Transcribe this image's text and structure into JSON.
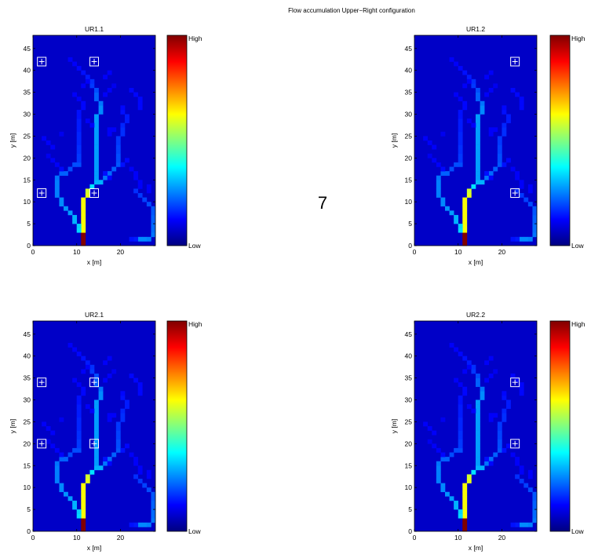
{
  "figure": {
    "title": "Flow accumulation Upper−Right configuration",
    "center_label": "7"
  },
  "chart_data": [
    {
      "type": "heatmap",
      "title": "UR1.1",
      "xlabel": "x [m]",
      "ylabel": "y [m]",
      "xlim": [
        0,
        28
      ],
      "ylim": [
        0,
        48
      ],
      "xticks": [
        0,
        10,
        20
      ],
      "yticks": [
        0,
        5,
        10,
        15,
        20,
        25,
        30,
        35,
        40,
        45
      ],
      "colorbar": {
        "high_label": "High",
        "low_label": "Low"
      },
      "markers": [
        {
          "x": 2,
          "y": 42
        },
        {
          "x": 14,
          "y": 42
        },
        {
          "x": 2,
          "y": 12
        },
        {
          "x": 14,
          "y": 12
        }
      ]
    },
    {
      "type": "heatmap",
      "title": "UR1.2",
      "xlabel": "x [m]",
      "ylabel": "y [m]",
      "xlim": [
        0,
        28
      ],
      "ylim": [
        0,
        48
      ],
      "xticks": [
        0,
        10,
        20
      ],
      "yticks": [
        0,
        5,
        10,
        15,
        20,
        25,
        30,
        35,
        40,
        45
      ],
      "colorbar": {
        "high_label": "High",
        "low_label": "Low"
      },
      "markers": [
        {
          "x": 23,
          "y": 42
        },
        {
          "x": 23,
          "y": 12
        }
      ]
    },
    {
      "type": "heatmap",
      "title": "UR2.1",
      "xlabel": "x [m]",
      "ylabel": "y [m]",
      "xlim": [
        0,
        28
      ],
      "ylim": [
        0,
        48
      ],
      "xticks": [
        0,
        10,
        20
      ],
      "yticks": [
        0,
        5,
        10,
        15,
        20,
        25,
        30,
        35,
        40,
        45
      ],
      "colorbar": {
        "high_label": "High",
        "low_label": "Low"
      },
      "markers": [
        {
          "x": 2,
          "y": 34
        },
        {
          "x": 14,
          "y": 34
        },
        {
          "x": 2,
          "y": 20
        },
        {
          "x": 14,
          "y": 20
        }
      ]
    },
    {
      "type": "heatmap",
      "title": "UR2.2",
      "xlabel": "x [m]",
      "ylabel": "y [m]",
      "xlim": [
        0,
        28
      ],
      "ylim": [
        0,
        48
      ],
      "xticks": [
        0,
        10,
        20
      ],
      "yticks": [
        0,
        5,
        10,
        15,
        20,
        25,
        30,
        35,
        40,
        45
      ],
      "colorbar": {
        "high_label": "High",
        "low_label": "Low"
      },
      "markers": [
        {
          "x": 23,
          "y": 34
        },
        {
          "x": 23,
          "y": 20
        }
      ]
    }
  ],
  "flow_network": {
    "background_value": 0.07,
    "cells": [
      {
        "x": 11,
        "y": 0,
        "v": 1.0
      },
      {
        "x": 11,
        "y": 1,
        "v": 1.0
      },
      {
        "x": 11,
        "y": 2,
        "v": 1.0
      },
      {
        "x": 11,
        "y": 3,
        "v": 0.62
      },
      {
        "x": 11,
        "y": 4,
        "v": 0.62
      },
      {
        "x": 11,
        "y": 5,
        "v": 0.62
      },
      {
        "x": 11,
        "y": 6,
        "v": 0.62
      },
      {
        "x": 11,
        "y": 7,
        "v": 0.62
      },
      {
        "x": 11,
        "y": 8,
        "v": 0.62
      },
      {
        "x": 11,
        "y": 9,
        "v": 0.62
      },
      {
        "x": 11,
        "y": 10,
        "v": 0.62
      },
      {
        "x": 12,
        "y": 11,
        "v": 0.6
      },
      {
        "x": 12,
        "y": 12,
        "v": 0.58
      },
      {
        "x": 13,
        "y": 13,
        "v": 0.35
      },
      {
        "x": 14,
        "y": 14,
        "v": 0.3
      },
      {
        "x": 15,
        "y": 14,
        "v": 0.3
      },
      {
        "x": 14,
        "y": 15,
        "v": 0.28
      },
      {
        "x": 14,
        "y": 16,
        "v": 0.28
      },
      {
        "x": 14,
        "y": 17,
        "v": 0.28
      },
      {
        "x": 14,
        "y": 18,
        "v": 0.28
      },
      {
        "x": 14,
        "y": 19,
        "v": 0.28
      },
      {
        "x": 14,
        "y": 20,
        "v": 0.28
      },
      {
        "x": 14,
        "y": 21,
        "v": 0.28
      },
      {
        "x": 14,
        "y": 22,
        "v": 0.28
      },
      {
        "x": 14,
        "y": 23,
        "v": 0.28
      },
      {
        "x": 14,
        "y": 24,
        "v": 0.28
      },
      {
        "x": 14,
        "y": 25,
        "v": 0.28
      },
      {
        "x": 14,
        "y": 26,
        "v": 0.28
      },
      {
        "x": 14,
        "y": 27,
        "v": 0.28
      },
      {
        "x": 14,
        "y": 28,
        "v": 0.28
      },
      {
        "x": 14,
        "y": 29,
        "v": 0.28
      },
      {
        "x": 15,
        "y": 30,
        "v": 0.26
      },
      {
        "x": 15,
        "y": 31,
        "v": 0.26
      },
      {
        "x": 15,
        "y": 32,
        "v": 0.24
      },
      {
        "x": 14,
        "y": 33,
        "v": 0.22
      },
      {
        "x": 14,
        "y": 34,
        "v": 0.22
      },
      {
        "x": 14,
        "y": 35,
        "v": 0.2
      },
      {
        "x": 13,
        "y": 36,
        "v": 0.18
      },
      {
        "x": 13,
        "y": 37,
        "v": 0.17
      },
      {
        "x": 12,
        "y": 38,
        "v": 0.15
      },
      {
        "x": 11,
        "y": 39,
        "v": 0.14
      },
      {
        "x": 10,
        "y": 40,
        "v": 0.13
      },
      {
        "x": 9,
        "y": 41,
        "v": 0.12
      },
      {
        "x": 8,
        "y": 42,
        "v": 0.12
      },
      {
        "x": 10,
        "y": 3,
        "v": 0.34
      },
      {
        "x": 10,
        "y": 4,
        "v": 0.33
      },
      {
        "x": 9,
        "y": 5,
        "v": 0.3
      },
      {
        "x": 9,
        "y": 6,
        "v": 0.3
      },
      {
        "x": 8,
        "y": 7,
        "v": 0.28
      },
      {
        "x": 7,
        "y": 8,
        "v": 0.27
      },
      {
        "x": 6,
        "y": 9,
        "v": 0.26
      },
      {
        "x": 6,
        "y": 10,
        "v": 0.26
      },
      {
        "x": 5,
        "y": 11,
        "v": 0.25
      },
      {
        "x": 5,
        "y": 12,
        "v": 0.25
      },
      {
        "x": 5,
        "y": 13,
        "v": 0.25
      },
      {
        "x": 5,
        "y": 14,
        "v": 0.25
      },
      {
        "x": 5,
        "y": 15,
        "v": 0.24
      },
      {
        "x": 6,
        "y": 16,
        "v": 0.22
      },
      {
        "x": 7,
        "y": 16,
        "v": 0.22
      },
      {
        "x": 8,
        "y": 17,
        "v": 0.2
      },
      {
        "x": 9,
        "y": 18,
        "v": 0.2
      },
      {
        "x": 10,
        "y": 18,
        "v": 0.2
      },
      {
        "x": 10,
        "y": 19,
        "v": 0.18
      },
      {
        "x": 10,
        "y": 20,
        "v": 0.18
      },
      {
        "x": 10,
        "y": 21,
        "v": 0.17
      },
      {
        "x": 10,
        "y": 22,
        "v": 0.17
      },
      {
        "x": 10,
        "y": 23,
        "v": 0.16
      },
      {
        "x": 10,
        "y": 24,
        "v": 0.16
      },
      {
        "x": 10,
        "y": 25,
        "v": 0.16
      },
      {
        "x": 10,
        "y": 26,
        "v": 0.15
      },
      {
        "x": 10,
        "y": 27,
        "v": 0.15
      },
      {
        "x": 10,
        "y": 28,
        "v": 0.15
      },
      {
        "x": 10,
        "y": 29,
        "v": 0.14
      },
      {
        "x": 10,
        "y": 30,
        "v": 0.14
      },
      {
        "x": 11,
        "y": 31,
        "v": 0.13
      },
      {
        "x": 11,
        "y": 32,
        "v": 0.13
      },
      {
        "x": 6,
        "y": 17,
        "v": 0.13
      },
      {
        "x": 5,
        "y": 18,
        "v": 0.12
      },
      {
        "x": 4,
        "y": 19,
        "v": 0.12
      },
      {
        "x": 3,
        "y": 20,
        "v": 0.11
      },
      {
        "x": 16,
        "y": 15,
        "v": 0.24
      },
      {
        "x": 17,
        "y": 16,
        "v": 0.23
      },
      {
        "x": 18,
        "y": 17,
        "v": 0.22
      },
      {
        "x": 19,
        "y": 18,
        "v": 0.21
      },
      {
        "x": 19,
        "y": 19,
        "v": 0.2
      },
      {
        "x": 19,
        "y": 20,
        "v": 0.2
      },
      {
        "x": 19,
        "y": 21,
        "v": 0.19
      },
      {
        "x": 19,
        "y": 22,
        "v": 0.19
      },
      {
        "x": 19,
        "y": 23,
        "v": 0.18
      },
      {
        "x": 19,
        "y": 24,
        "v": 0.18
      },
      {
        "x": 20,
        "y": 25,
        "v": 0.17
      },
      {
        "x": 20,
        "y": 26,
        "v": 0.17
      },
      {
        "x": 20,
        "y": 27,
        "v": 0.16
      },
      {
        "x": 21,
        "y": 28,
        "v": 0.15
      },
      {
        "x": 21,
        "y": 29,
        "v": 0.15
      },
      {
        "x": 20,
        "y": 30,
        "v": 0.14
      },
      {
        "x": 20,
        "y": 31,
        "v": 0.13
      },
      {
        "x": 20,
        "y": 18,
        "v": 0.14
      },
      {
        "x": 21,
        "y": 19,
        "v": 0.13
      },
      {
        "x": 22,
        "y": 17,
        "v": 0.12
      },
      {
        "x": 23,
        "y": 16,
        "v": 0.12
      },
      {
        "x": 23,
        "y": 15,
        "v": 0.12
      },
      {
        "x": 24,
        "y": 14,
        "v": 0.12
      },
      {
        "x": 24,
        "y": 13,
        "v": 0.12
      },
      {
        "x": 16,
        "y": 16,
        "v": 0.14
      },
      {
        "x": 17,
        "y": 15,
        "v": 0.13
      },
      {
        "x": 17,
        "y": 25,
        "v": 0.12
      },
      {
        "x": 17,
        "y": 26,
        "v": 0.12
      },
      {
        "x": 18,
        "y": 26,
        "v": 0.12
      },
      {
        "x": 13,
        "y": 27,
        "v": 0.12
      },
      {
        "x": 12,
        "y": 28,
        "v": 0.12
      },
      {
        "x": 16,
        "y": 34,
        "v": 0.12
      },
      {
        "x": 17,
        "y": 35,
        "v": 0.12
      },
      {
        "x": 18,
        "y": 36,
        "v": 0.11
      },
      {
        "x": 16,
        "y": 38,
        "v": 0.12
      },
      {
        "x": 17,
        "y": 39,
        "v": 0.12
      },
      {
        "x": 12,
        "y": 37,
        "v": 0.12
      },
      {
        "x": 11,
        "y": 36,
        "v": 0.12
      },
      {
        "x": 10,
        "y": 33,
        "v": 0.12
      },
      {
        "x": 9,
        "y": 34,
        "v": 0.12
      },
      {
        "x": 22,
        "y": 35,
        "v": 0.13
      },
      {
        "x": 23,
        "y": 34,
        "v": 0.13
      },
      {
        "x": 24,
        "y": 33,
        "v": 0.13
      },
      {
        "x": 24,
        "y": 32,
        "v": 0.13
      },
      {
        "x": 24,
        "y": 31,
        "v": 0.13
      },
      {
        "x": 2,
        "y": 24,
        "v": 0.12
      },
      {
        "x": 3,
        "y": 23,
        "v": 0.12
      },
      {
        "x": 4,
        "y": 22,
        "v": 0.12
      },
      {
        "x": 6,
        "y": 25,
        "v": 0.11
      },
      {
        "x": 24,
        "y": 1,
        "v": 0.26
      },
      {
        "x": 25,
        "y": 1,
        "v": 0.26
      },
      {
        "x": 26,
        "y": 1,
        "v": 0.25
      },
      {
        "x": 27,
        "y": 2,
        "v": 0.24
      },
      {
        "x": 27,
        "y": 3,
        "v": 0.23
      },
      {
        "x": 27,
        "y": 4,
        "v": 0.23
      },
      {
        "x": 27,
        "y": 5,
        "v": 0.22
      },
      {
        "x": 27,
        "y": 6,
        "v": 0.22
      },
      {
        "x": 27,
        "y": 7,
        "v": 0.21
      },
      {
        "x": 27,
        "y": 8,
        "v": 0.21
      },
      {
        "x": 26,
        "y": 9,
        "v": 0.2
      },
      {
        "x": 25,
        "y": 10,
        "v": 0.19
      },
      {
        "x": 24,
        "y": 11,
        "v": 0.18
      },
      {
        "x": 23,
        "y": 12,
        "v": 0.17
      },
      {
        "x": 23,
        "y": 1,
        "v": 0.15
      },
      {
        "x": 22,
        "y": 1,
        "v": 0.14
      },
      {
        "x": 26,
        "y": 13,
        "v": 0.12
      },
      {
        "x": 26,
        "y": 12,
        "v": 0.12
      }
    ]
  }
}
